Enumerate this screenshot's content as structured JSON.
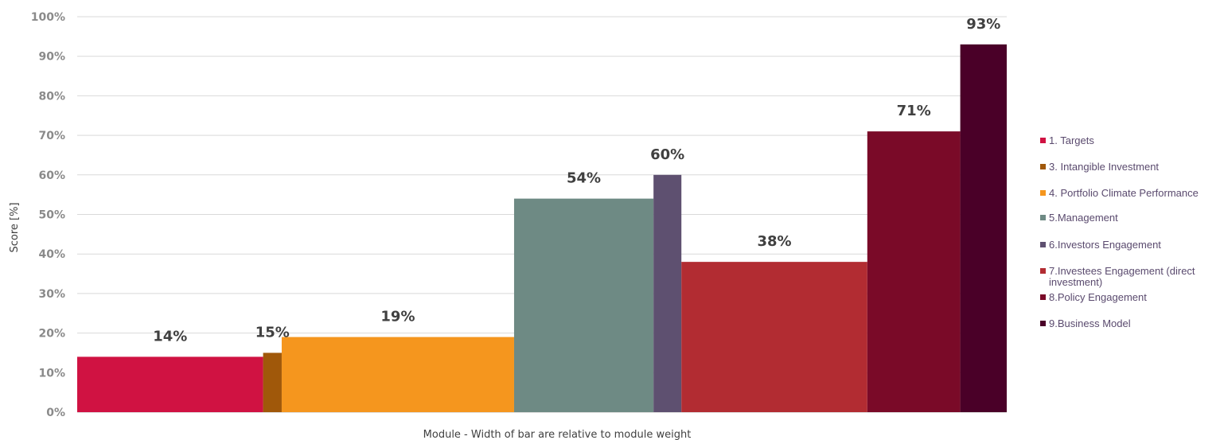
{
  "chart_data": {
    "type": "bar",
    "xlabel": "Module - Width of bar are relative to module weight",
    "ylabel": "Score [%]",
    "ylim": [
      0,
      100
    ],
    "yticks": [
      "0%",
      "10%",
      "20%",
      "30%",
      "40%",
      "50%",
      "60%",
      "70%",
      "80%",
      "90%",
      "100%"
    ],
    "grid": true,
    "legend_position": "right",
    "series": [
      {
        "name": "1. Targets",
        "value": 14,
        "label": "14%",
        "relative_weight": 20,
        "color": "#d01242"
      },
      {
        "name": "3. Intangible Investment",
        "value": 15,
        "label": "15%",
        "relative_weight": 2,
        "color": "#a0580a"
      },
      {
        "name": "4. Portfolio Climate Performance",
        "value": 19,
        "label": "19%",
        "relative_weight": 25,
        "color": "#f5961e"
      },
      {
        "name": "5.Management",
        "value": 54,
        "label": "54%",
        "relative_weight": 15,
        "color": "#6e8a84"
      },
      {
        "name": "6.Investors Engagement",
        "value": 60,
        "label": "60%",
        "relative_weight": 3,
        "color": "#5e5070"
      },
      {
        "name": "7.Investees Engagement (direct investment)",
        "value": 38,
        "label": "38%",
        "relative_weight": 20,
        "color": "#b22c32"
      },
      {
        "name": "8.Policy Engagement",
        "value": 71,
        "label": "71%",
        "relative_weight": 10,
        "color": "#7a0a28"
      },
      {
        "name": "9.Business Model",
        "value": 93,
        "label": "93%",
        "relative_weight": 5,
        "color": "#4a0028"
      }
    ],
    "legend_entries": [
      "1. Targets",
      "3. Intangible Investment",
      "4. Portfolio Climate Performance",
      "5.Management",
      "6.Investors Engagement",
      "7.Investees Engagement (direct",
      "investment)",
      "8.Policy Engagement",
      "9.Business Model"
    ]
  }
}
